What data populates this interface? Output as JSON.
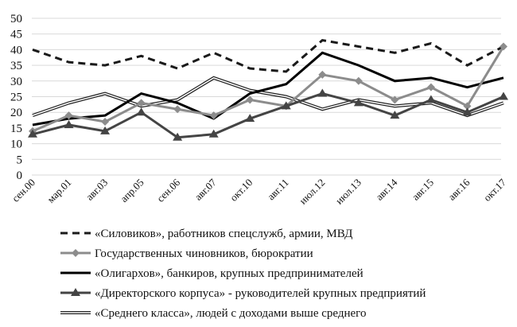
{
  "chart_data": {
    "type": "line",
    "title": "",
    "xlabel": "",
    "ylabel": "",
    "ylim": [
      0,
      50
    ],
    "yticks": [
      0,
      5,
      10,
      15,
      20,
      25,
      30,
      35,
      40,
      45,
      50
    ],
    "grid": true,
    "legend_position": "bottom",
    "categories": [
      "сен.00",
      "мар.01",
      "авг.03",
      "апр.05",
      "сен.06",
      "авг.07",
      "окт.10",
      "авг.11",
      "июл.12",
      "июл.13",
      "авг.14",
      "авг.15",
      "авг.16",
      "окт.17"
    ],
    "series": [
      {
        "name": "«Силовиков», работников  спецслужб, армии, МВД",
        "style": "dashed",
        "color": "#1a1a1a",
        "marker": "none",
        "values": [
          40,
          36,
          35,
          38,
          34,
          39,
          34,
          33,
          43,
          41,
          39,
          42,
          35,
          41
        ]
      },
      {
        "name": "Государственных  чиновников, бюрократии",
        "style": "solid",
        "color": "#8c8c8c",
        "marker": "diamond",
        "values": [
          14,
          19,
          17,
          23,
          21,
          19,
          24,
          22,
          32,
          30,
          24,
          28,
          22,
          41
        ]
      },
      {
        "name": "«Олигархов», банкиров, крупных предпринимателей",
        "style": "solid",
        "color": "#000000",
        "marker": "none",
        "values": [
          16,
          18,
          19,
          26,
          23,
          18,
          26,
          29,
          39,
          35,
          30,
          31,
          28,
          31
        ]
      },
      {
        "name": "«Директорского корпуса» - руководителей крупных предприятий",
        "style": "solid",
        "color": "#444444",
        "marker": "triangle",
        "values": [
          13,
          16,
          14,
          20,
          12,
          13,
          18,
          22,
          26,
          23,
          19,
          24,
          20,
          25
        ]
      },
      {
        "name": "«Среднего класса», людей с доходами выше среднего",
        "style": "double",
        "color": "#222222",
        "marker": "none",
        "values": [
          19,
          23,
          26,
          22,
          24,
          31,
          27,
          25,
          21,
          24,
          22,
          23,
          19,
          23
        ]
      }
    ]
  }
}
